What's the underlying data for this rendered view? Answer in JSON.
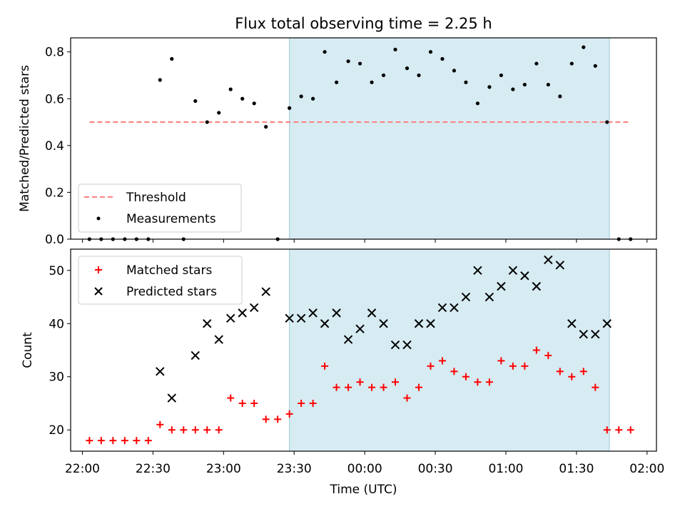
{
  "chart_data": [
    {
      "type": "scatter",
      "title": "Flux total observing time = 2.25 h",
      "ylabel": "Matched/Predicted stars",
      "ylim": [
        0,
        0.86
      ],
      "yticks": [
        "0.0",
        "0.2",
        "0.4",
        "0.6",
        "0.8"
      ],
      "ytick_values": [
        0,
        0.2,
        0.4,
        0.6,
        0.8
      ],
      "xlim": [
        "21:55",
        "02:04"
      ],
      "observing_window": [
        "23:28",
        "01:44"
      ],
      "threshold": {
        "value": 0.5,
        "x_range": [
          "22:03",
          "01:53"
        ]
      },
      "legend_position": "lower-left",
      "series": [
        {
          "name": "Threshold",
          "kind": "dashed-line",
          "color": "#ff7f7f"
        },
        {
          "name": "Measurements",
          "kind": "dot",
          "color": "#000000",
          "x": [
            "22:03",
            "22:08",
            "22:13",
            "22:18",
            "22:23",
            "22:28",
            "22:33",
            "22:38",
            "22:43",
            "22:48",
            "22:53",
            "22:58",
            "23:03",
            "23:08",
            "23:13",
            "23:18",
            "23:23",
            "23:28",
            "23:33",
            "23:38",
            "23:43",
            "23:48",
            "23:53",
            "23:58",
            "00:03",
            "00:08",
            "00:13",
            "00:18",
            "00:23",
            "00:28",
            "00:33",
            "00:38",
            "00:43",
            "00:48",
            "00:53",
            "00:58",
            "01:03",
            "01:08",
            "01:13",
            "01:18",
            "01:23",
            "01:28",
            "01:33",
            "01:38",
            "01:43",
            "01:48",
            "01:53"
          ],
          "y": [
            0,
            0,
            0,
            0,
            0,
            0,
            0.68,
            0.77,
            0,
            0.59,
            0.5,
            0.54,
            0.64,
            0.6,
            0.58,
            0.48,
            0,
            0.56,
            0.61,
            0.6,
            0.8,
            0.67,
            0.76,
            0.75,
            0.67,
            0.7,
            0.81,
            0.73,
            0.7,
            0.8,
            0.77,
            0.72,
            0.67,
            0.58,
            0.65,
            0.7,
            0.64,
            0.66,
            0.75,
            0.66,
            0.61,
            0.75,
            0.82,
            0.74,
            0.5,
            0,
            0
          ]
        }
      ]
    },
    {
      "type": "scatter",
      "xlabel": "Time (UTC)",
      "ylabel": "Count",
      "ylim": [
        16,
        54
      ],
      "yticks": [
        "20",
        "30",
        "40",
        "50"
      ],
      "ytick_values": [
        20,
        30,
        40,
        50
      ],
      "xticks": [
        "22:00",
        "22:30",
        "23:00",
        "23:30",
        "00:00",
        "00:30",
        "01:00",
        "01:30",
        "02:00"
      ],
      "xtick_values": [
        "22:00",
        "22:30",
        "23:00",
        "23:30",
        "00:00",
        "00:30",
        "01:00",
        "01:30",
        "02:00"
      ],
      "xlim": [
        "21:55",
        "02:04"
      ],
      "observing_window": [
        "23:28",
        "01:44"
      ],
      "legend_position": "upper-left",
      "series": [
        {
          "name": "Matched stars",
          "marker": "plus",
          "color": "#ff0000",
          "x": [
            "22:03",
            "22:08",
            "22:13",
            "22:18",
            "22:23",
            "22:28",
            "22:33",
            "22:38",
            "22:43",
            "22:48",
            "22:53",
            "22:58",
            "23:03",
            "23:08",
            "23:13",
            "23:18",
            "23:23",
            "23:28",
            "23:33",
            "23:38",
            "23:43",
            "23:48",
            "23:53",
            "23:58",
            "00:03",
            "00:08",
            "00:13",
            "00:18",
            "00:23",
            "00:28",
            "00:33",
            "00:38",
            "00:43",
            "00:48",
            "00:53",
            "00:58",
            "01:03",
            "01:08",
            "01:13",
            "01:18",
            "01:23",
            "01:28",
            "01:33",
            "01:38",
            "01:43",
            "01:48",
            "01:53"
          ],
          "y": [
            18,
            18,
            18,
            18,
            18,
            18,
            21,
            20,
            20,
            20,
            20,
            20,
            26,
            25,
            25,
            22,
            22,
            23,
            25,
            25,
            32,
            28,
            28,
            29,
            28,
            28,
            29,
            26,
            28,
            32,
            33,
            31,
            30,
            29,
            29,
            33,
            32,
            32,
            35,
            34,
            31,
            30,
            31,
            28,
            20,
            20,
            20
          ]
        },
        {
          "name": "Predicted stars",
          "marker": "x",
          "color": "#000000",
          "x": [
            "22:33",
            "22:38",
            "22:48",
            "22:53",
            "22:58",
            "23:03",
            "23:08",
            "23:13",
            "23:18",
            "23:28",
            "23:33",
            "23:38",
            "23:43",
            "23:48",
            "23:53",
            "23:58",
            "00:03",
            "00:08",
            "00:13",
            "00:18",
            "00:23",
            "00:28",
            "00:33",
            "00:38",
            "00:43",
            "00:48",
            "00:53",
            "00:58",
            "01:03",
            "01:08",
            "01:13",
            "01:18",
            "01:23",
            "01:28",
            "01:33",
            "01:38",
            "01:43"
          ],
          "y": [
            31,
            26,
            34,
            40,
            37,
            41,
            42,
            43,
            46,
            41,
            41,
            42,
            40,
            42,
            37,
            39,
            42,
            40,
            36,
            36,
            40,
            40,
            43,
            43,
            45,
            50,
            45,
            47,
            50,
            49,
            47,
            52,
            51,
            40,
            38,
            38,
            40
          ]
        }
      ]
    }
  ]
}
